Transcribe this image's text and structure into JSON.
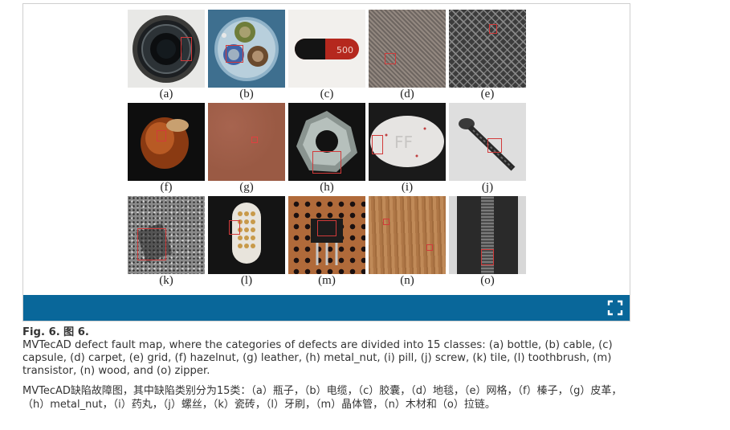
{
  "figure": {
    "panels_row1": [
      {
        "label": "(a)",
        "icon": "bottle-image"
      },
      {
        "label": "(b)",
        "icon": "cable-image"
      },
      {
        "label": "(c)",
        "icon": "capsule-image"
      },
      {
        "label": "(d)",
        "icon": "carpet-image"
      },
      {
        "label": "(e)",
        "icon": "grid-image"
      }
    ],
    "panels_row2": [
      {
        "label": "(f)",
        "icon": "hazelnut-image"
      },
      {
        "label": "(g)",
        "icon": "leather-image"
      },
      {
        "label": "(h)",
        "icon": "metal-nut-image"
      },
      {
        "label": "(i)",
        "icon": "pill-image"
      },
      {
        "label": "(j)",
        "icon": "screw-image"
      }
    ],
    "panels_row3": [
      {
        "label": "(k)",
        "icon": "tile-image"
      },
      {
        "label": "(l)",
        "icon": "toothbrush-image"
      },
      {
        "label": "(m)",
        "icon": "transistor-image"
      },
      {
        "label": "(n)",
        "icon": "wood-image"
      },
      {
        "label": "(o)",
        "icon": "zipper-image"
      }
    ],
    "capsule_text": "500",
    "pill_text": "FF",
    "toolbar_color": "#09679a",
    "defect_box_color": "#d23a3a",
    "fullscreen_icon": "expand-icon"
  },
  "caption": {
    "fig_label": "Fig. 6.",
    "fig_label_cn": "图 6.",
    "text_en": "MVTecAD defect fault map, where the categories of defects are divided into 15 classes: (a) bottle, (b) cable, (c) capsule, (d) carpet, (e) grid, (f) hazelnut, (g) leather, (h) metal_nut, (i) pill, (j) screw, (k) tile, (l) toothbrush, (m) transistor, (n) wood, and (o) zipper.",
    "text_cn": "MVTecAD缺陷故障图，其中缺陷类别分为15类：（a）瓶子，（b）电缆，（c）胶囊，（d）地毯，（e）网格，（f）榛子，（g）皮革，（h）metal_nut，（i）药丸，（j）螺丝，（k）瓷砖，（l）牙刷，（m）晶体管，（n）木材和（o）拉链。"
  }
}
